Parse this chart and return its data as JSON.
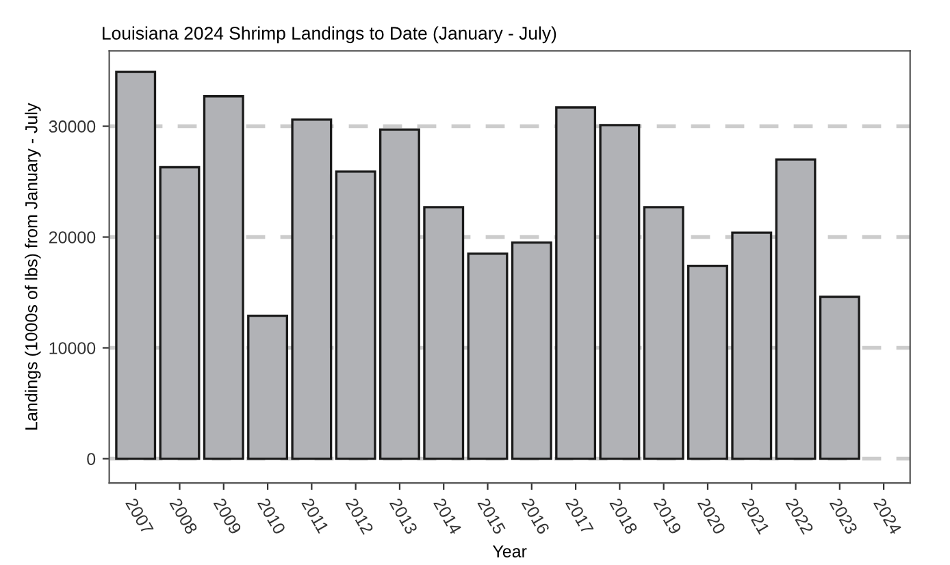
{
  "chart_data": {
    "type": "bar",
    "title": "Louisiana 2024 Shrimp Landings to Date (January - July)",
    "xlabel": "Year",
    "ylabel": "Landings (1000s of lbs) from January - July",
    "categories": [
      "2007",
      "2008",
      "2009",
      "2010",
      "2011",
      "2012",
      "2013",
      "2014",
      "2015",
      "2016",
      "2017",
      "2018",
      "2019",
      "2020",
      "2021",
      "2022",
      "2023",
      "2024"
    ],
    "values": [
      34900,
      26300,
      32700,
      12900,
      30600,
      25900,
      29700,
      22700,
      18500,
      19500,
      31700,
      30100,
      22700,
      17400,
      20400,
      27000,
      14600,
      null
    ],
    "color": "#b1b2b6",
    "ylim": [
      -2200,
      36800
    ],
    "yticks": [
      0,
      10000,
      20000,
      30000
    ],
    "grid": "y"
  }
}
